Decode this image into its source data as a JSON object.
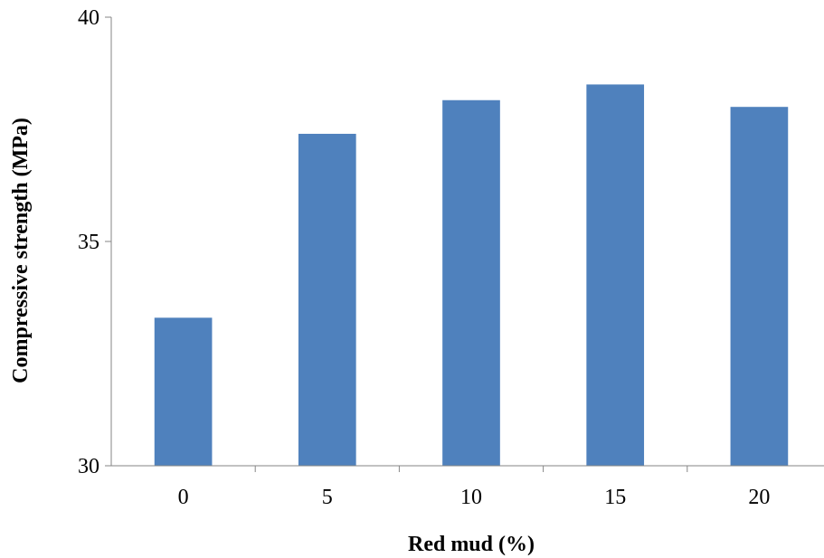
{
  "chart_data": {
    "type": "bar",
    "title": "",
    "xlabel": "Red mud (%)",
    "ylabel": "Compressive strength (MPa)",
    "categories": [
      "0",
      "5",
      "10",
      "15",
      "20"
    ],
    "values": [
      33.3,
      37.4,
      38.15,
      38.5,
      38.0
    ],
    "ylim": [
      30,
      40
    ],
    "yticks": [
      {
        "value": 30,
        "label": "30"
      },
      {
        "value": 35,
        "label": "35"
      },
      {
        "value": 40,
        "label": "40"
      }
    ],
    "grid": false,
    "legend": "none",
    "bar_color": "#4f81bd",
    "axis_color": "#868686"
  }
}
